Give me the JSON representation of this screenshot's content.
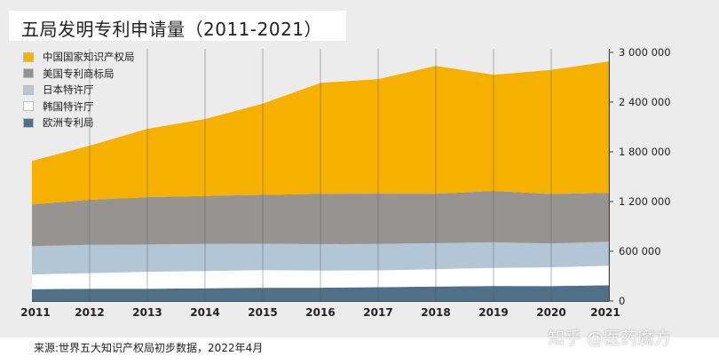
{
  "chart_data": {
    "type": "area",
    "stacked": true,
    "title": "五局发明专利申请量（2011-2021）",
    "x": [
      "2011",
      "2012",
      "2013",
      "2014",
      "2015",
      "2016",
      "2017",
      "2018",
      "2019",
      "2020",
      "2021"
    ],
    "ylim": [
      0,
      3000000
    ],
    "yticks": [
      "0",
      "600 000",
      "1 200 000",
      "1 800 000",
      "2 400 000",
      "3 000 000"
    ],
    "y_axis_position": "right",
    "grid": "vertical",
    "legend_position": "top-left",
    "series": [
      {
        "name": "欧洲专利局",
        "color": "#4f7087",
        "values": [
          142000,
          148000,
          148000,
          152000,
          160000,
          160000,
          166000,
          174000,
          181000,
          180000,
          189000
        ]
      },
      {
        "name": "韩国特许厅",
        "color": "#ffffff",
        "values": [
          178000,
          188000,
          205000,
          210000,
          213000,
          208000,
          204000,
          210000,
          219000,
          226000,
          237000
        ]
      },
      {
        "name": "日本特许厅",
        "color": "#b3c6d6",
        "values": [
          342000,
          342000,
          328000,
          326000,
          318000,
          318000,
          318000,
          313000,
          308000,
          288000,
          289000
        ]
      },
      {
        "name": "美国专利商标局",
        "color": "#979391",
        "values": [
          503000,
          543000,
          571000,
          579000,
          589000,
          606000,
          607000,
          597000,
          621000,
          597000,
          591000
        ]
      },
      {
        "name": "中国国家知识产权局",
        "color": "#f5b000",
        "values": [
          526000,
          653000,
          825000,
          928000,
          1102000,
          1339000,
          1382000,
          1542000,
          1400000,
          1497000,
          1586000
        ]
      }
    ]
  },
  "footer": {
    "source": "来源:世界五大知识产权局初步数据，2022年4月",
    "watermark": "知乎 @医药魔方"
  }
}
